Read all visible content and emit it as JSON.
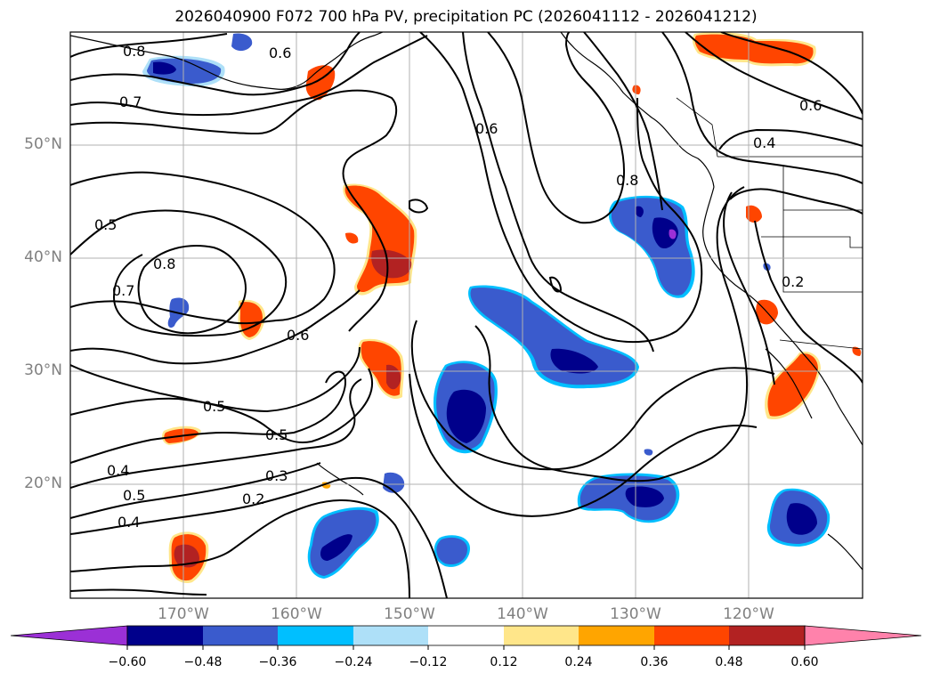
{
  "title": "2026040900 F072 700 hPa PV, precipitation PC (2026041112 - 2026041212)",
  "map": {
    "lat_labels": [
      "50°N",
      "40°N",
      "30°N",
      "20°N"
    ],
    "lon_labels": [
      "170°W",
      "160°W",
      "150°W",
      "140°W",
      "130°W",
      "120°W"
    ],
    "contour_labels": [
      "0.8",
      "0.6",
      "0.7",
      "0.5",
      "0.7",
      "0.8",
      "0.6",
      "0.5",
      "0.5",
      "0.4",
      "0.5",
      "0.4",
      "0.3",
      "0.2",
      "0.6",
      "0.8",
      "0.6",
      "0.4",
      "0.2"
    ],
    "contour_color": "#000000",
    "grid": true
  },
  "colorbar": {
    "ticks": [
      "−0.60",
      "−0.48",
      "−0.36",
      "−0.24",
      "−0.12",
      "0.12",
      "0.24",
      "0.36",
      "0.48",
      "0.60"
    ],
    "colors": [
      "#9b30d6",
      "#00008b",
      "#3a5bcd",
      "#00bfff",
      "#aee0f8",
      "#ffffff",
      "#ffe68a",
      "#ffa500",
      "#ff4500",
      "#b22222",
      "#ff82ab"
    ]
  }
}
